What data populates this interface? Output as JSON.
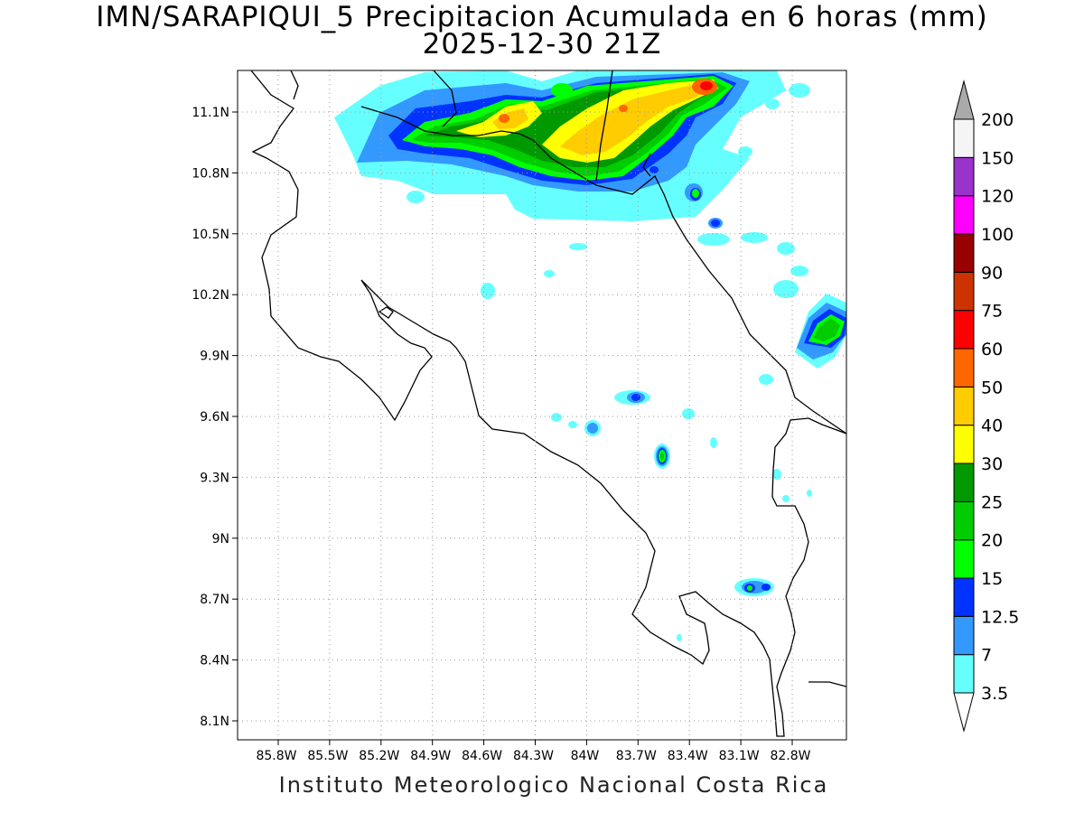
{
  "title": {
    "line1": "IMN/SARAPIQUI_5 Precipitacion Acumulada en 6 horas (mm)",
    "line2": "2025-12-30 21Z"
  },
  "footer": "Instituto Meteorologico Nacional Costa Rica",
  "map": {
    "lon_range": [
      -86.0,
      -83.0
    ],
    "lat_range": [
      8.0,
      11.2
    ],
    "lon_ticks": [
      "85.8W",
      "85.5W",
      "85.2W",
      "84.9W",
      "84.6W",
      "84.3W",
      "84W",
      "83.7W",
      "83.4W",
      "83.1W",
      "82.8W"
    ],
    "lat_ticks": [
      "11.1N",
      "10.8N",
      "10.5N",
      "10.2N",
      "9.9N",
      "9.6N",
      "9.3N",
      "9N",
      "8.7N",
      "8.4N",
      "8.1N"
    ],
    "grid": "dotted"
  },
  "colorbar": {
    "levels": [
      "3.5",
      "7",
      "12.5",
      "15",
      "20",
      "25",
      "30",
      "40",
      "50",
      "60",
      "75",
      "90",
      "100",
      "120",
      "150",
      "200"
    ],
    "colors": [
      "#66ffff",
      "#3399ff",
      "#0033ff",
      "#00ff00",
      "#00cc00",
      "#009900",
      "#ffff00",
      "#ffcc00",
      "#ff6600",
      "#ff0000",
      "#cc3300",
      "#990000",
      "#ff00ff",
      "#9933cc",
      "#f5f5f5",
      "#aaaaaa"
    ]
  }
}
